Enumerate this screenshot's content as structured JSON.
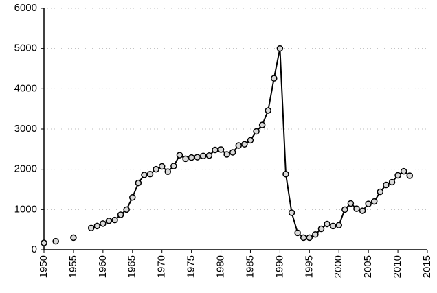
{
  "chart_data": {
    "type": "line",
    "x": [
      1950,
      1951,
      1952,
      1953,
      1954,
      1955,
      1956,
      1957,
      1958,
      1959,
      1960,
      1961,
      1962,
      1963,
      1964,
      1965,
      1966,
      1967,
      1968,
      1969,
      1970,
      1971,
      1972,
      1973,
      1974,
      1975,
      1976,
      1977,
      1978,
      1979,
      1980,
      1981,
      1982,
      1983,
      1984,
      1985,
      1986,
      1987,
      1988,
      1989,
      1990,
      1991,
      1992,
      1993,
      1994,
      1995,
      1996,
      1997,
      1998,
      1999,
      2000,
      2001,
      2002,
      2003,
      2004,
      2005,
      2006,
      2007,
      2008,
      2009,
      2010,
      2011,
      2012
    ],
    "series": [
      {
        "color": "#000000",
        "marker_fill": "#d9d9d9",
        "values": [
          170,
          null,
          210,
          null,
          null,
          300,
          null,
          null,
          540,
          590,
          650,
          720,
          740,
          870,
          1000,
          1300,
          1660,
          1860,
          1880,
          2000,
          2070,
          1940,
          2080,
          2350,
          2260,
          2290,
          2300,
          2330,
          2340,
          2480,
          2490,
          2370,
          2420,
          2590,
          2620,
          2720,
          2940,
          3100,
          3460,
          4260,
          5000,
          1880,
          920,
          420,
          300,
          300,
          380,
          520,
          640,
          590,
          610,
          1000,
          1150,
          1020,
          970,
          1140,
          1200,
          1440,
          1610,
          1680,
          1850,
          1950,
          1840
        ]
      }
    ],
    "xlim": [
      1950,
      2015
    ],
    "xticks": [
      1950,
      1955,
      1960,
      1965,
      1970,
      1975,
      1980,
      1985,
      1990,
      1995,
      2000,
      2005,
      2010,
      2015
    ],
    "ylim": [
      0,
      6000
    ],
    "yticks": [
      0,
      1000,
      2000,
      3000,
      4000,
      5000,
      6000
    ],
    "grid": true
  }
}
